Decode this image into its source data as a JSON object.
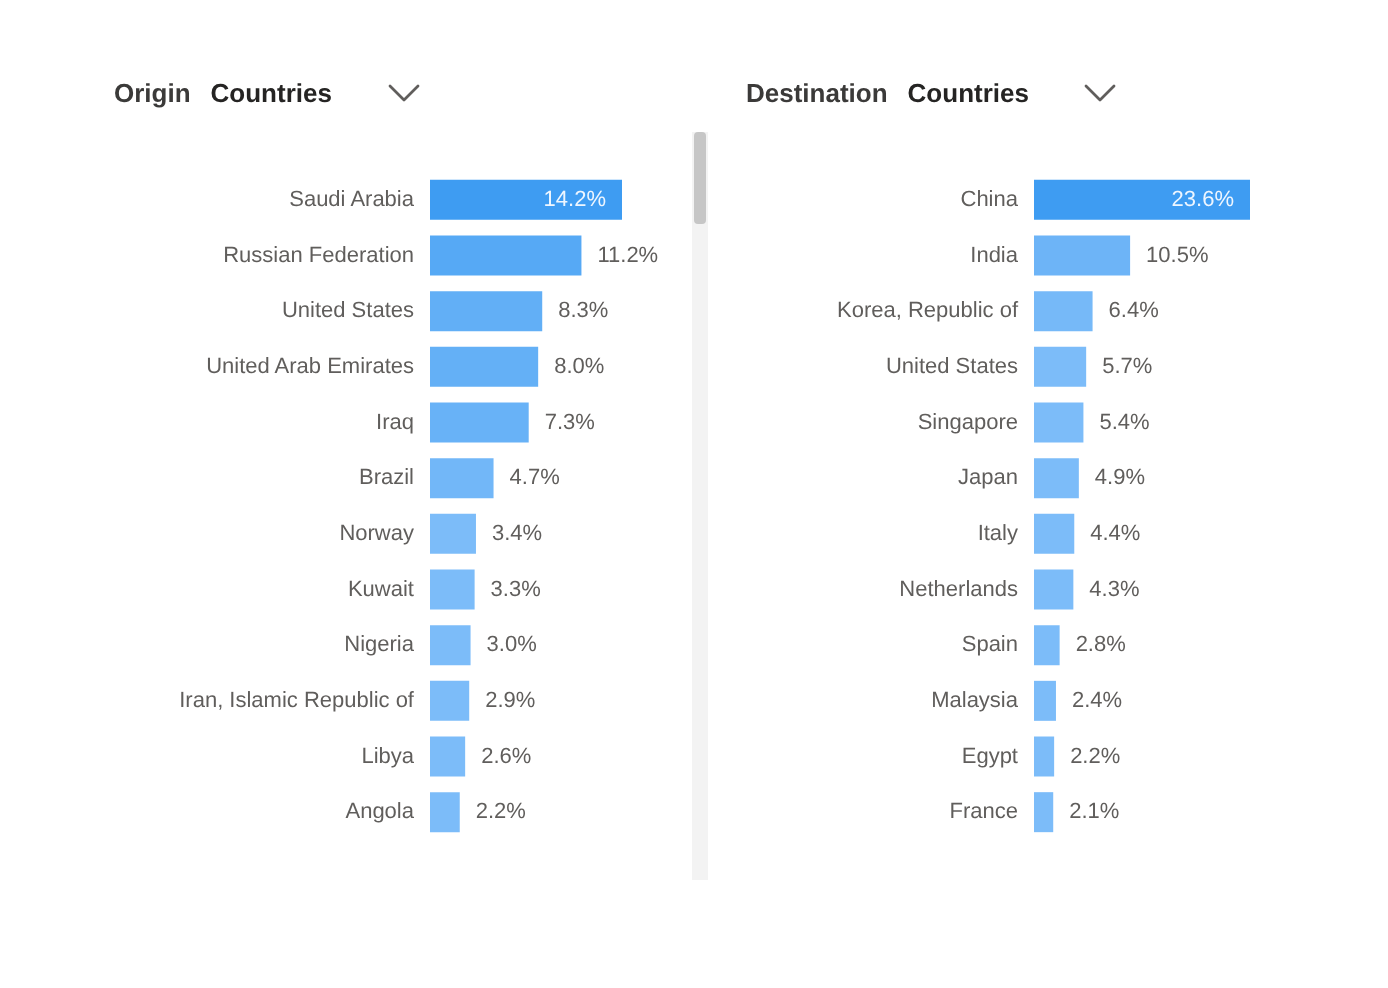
{
  "chart_data": [
    {
      "type": "bar",
      "orientation": "horizontal",
      "title": "Origin",
      "subtitle": "Countries",
      "categories": [
        "Saudi Arabia",
        "Russian Federation",
        "United States",
        "United Arab Emirates",
        "Iraq",
        "Brazil",
        "Norway",
        "Kuwait",
        "Nigeria",
        "Iran, Islamic Republic of",
        "Libya",
        "Angola"
      ],
      "values": [
        14.2,
        11.2,
        8.3,
        8.0,
        7.3,
        4.7,
        3.4,
        3.3,
        3.0,
        2.9,
        2.6,
        2.2
      ],
      "value_labels": [
        "14.2%",
        "11.2%",
        "8.3%",
        "8.0%",
        "7.3%",
        "4.7%",
        "3.4%",
        "3.3%",
        "3.0%",
        "2.9%",
        "2.6%",
        "2.2%"
      ],
      "colors": [
        "#3e9cf2",
        "#56a9f5",
        "#62aff6",
        "#64b0f6",
        "#68b2f7",
        "#72b7f8",
        "#7cbcf9",
        "#7cbcf9",
        "#7cbcf9",
        "#7cbcf9",
        "#7cbcf9",
        "#7cbcf9"
      ],
      "tick_labels": "y"
    },
    {
      "type": "bar",
      "orientation": "horizontal",
      "title": "Destination",
      "subtitle": "Countries",
      "categories": [
        "China",
        "India",
        "Korea, Republic of",
        "United States",
        "Singapore",
        "Japan",
        "Italy",
        "Netherlands",
        "Spain",
        "Malaysia",
        "Egypt",
        "France"
      ],
      "values": [
        23.6,
        10.5,
        6.4,
        5.7,
        5.4,
        4.9,
        4.4,
        4.3,
        2.8,
        2.4,
        2.2,
        2.1
      ],
      "value_labels": [
        "23.6%",
        "10.5%",
        "6.4%",
        "5.7%",
        "5.4%",
        "4.9%",
        "4.4%",
        "4.3%",
        "2.8%",
        "2.4%",
        "2.2%",
        "2.1%"
      ],
      "colors": [
        "#3e9cf2",
        "#6db4f7",
        "#76b9f8",
        "#7cbcf9",
        "#7cbcf9",
        "#7cbcf9",
        "#7cbcf9",
        "#7cbcf9",
        "#7cbcf9",
        "#7cbcf9",
        "#7cbcf9",
        "#7cbcf9"
      ],
      "tick_labels": "y"
    }
  ]
}
